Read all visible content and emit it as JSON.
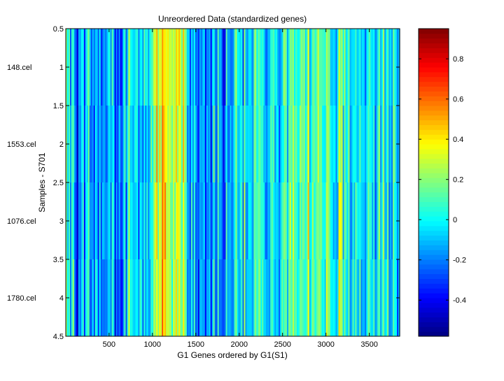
{
  "chart_data": {
    "type": "heatmap",
    "title": "Unreordered Data (standardized genes)",
    "xlabel": "G1 Genes ordered by G1(S1)",
    "ylabel": "Samples - S701",
    "xlim": [
      1,
      3850
    ],
    "ylim": [
      0.5,
      4.5
    ],
    "y_reversed": true,
    "x_ticks": [
      500,
      1000,
      1500,
      2000,
      2500,
      3000,
      3500
    ],
    "y_ticks": [
      0.5,
      1,
      1.5,
      2,
      2.5,
      3,
      3.5,
      4,
      4.5
    ],
    "row_labels": [
      "148.cel",
      "1553.cel",
      "1076.cel",
      "1780.cel"
    ],
    "colorbar": {
      "colormap": "jet",
      "range": [
        -0.58,
        0.95
      ],
      "ticks": [
        -0.4,
        -0.2,
        0,
        0.2,
        0.4,
        0.6,
        0.8
      ]
    },
    "column_profile": {
      "note": "approximate mean standardized value along gene index (cols 1..3850), read from colour",
      "segments": [
        {
          "from": 1,
          "to": 100,
          "value": 0.02
        },
        {
          "from": 100,
          "to": 700,
          "value": -0.15
        },
        {
          "from": 700,
          "to": 1000,
          "value": -0.05
        },
        {
          "from": 1000,
          "to": 1400,
          "value": 0.3
        },
        {
          "from": 1400,
          "to": 2000,
          "value": -0.15
        },
        {
          "from": 2000,
          "to": 2500,
          "value": -0.05
        },
        {
          "from": 2500,
          "to": 3200,
          "value": 0.1
        },
        {
          "from": 3200,
          "to": 3850,
          "value": 0.0
        }
      ]
    }
  }
}
